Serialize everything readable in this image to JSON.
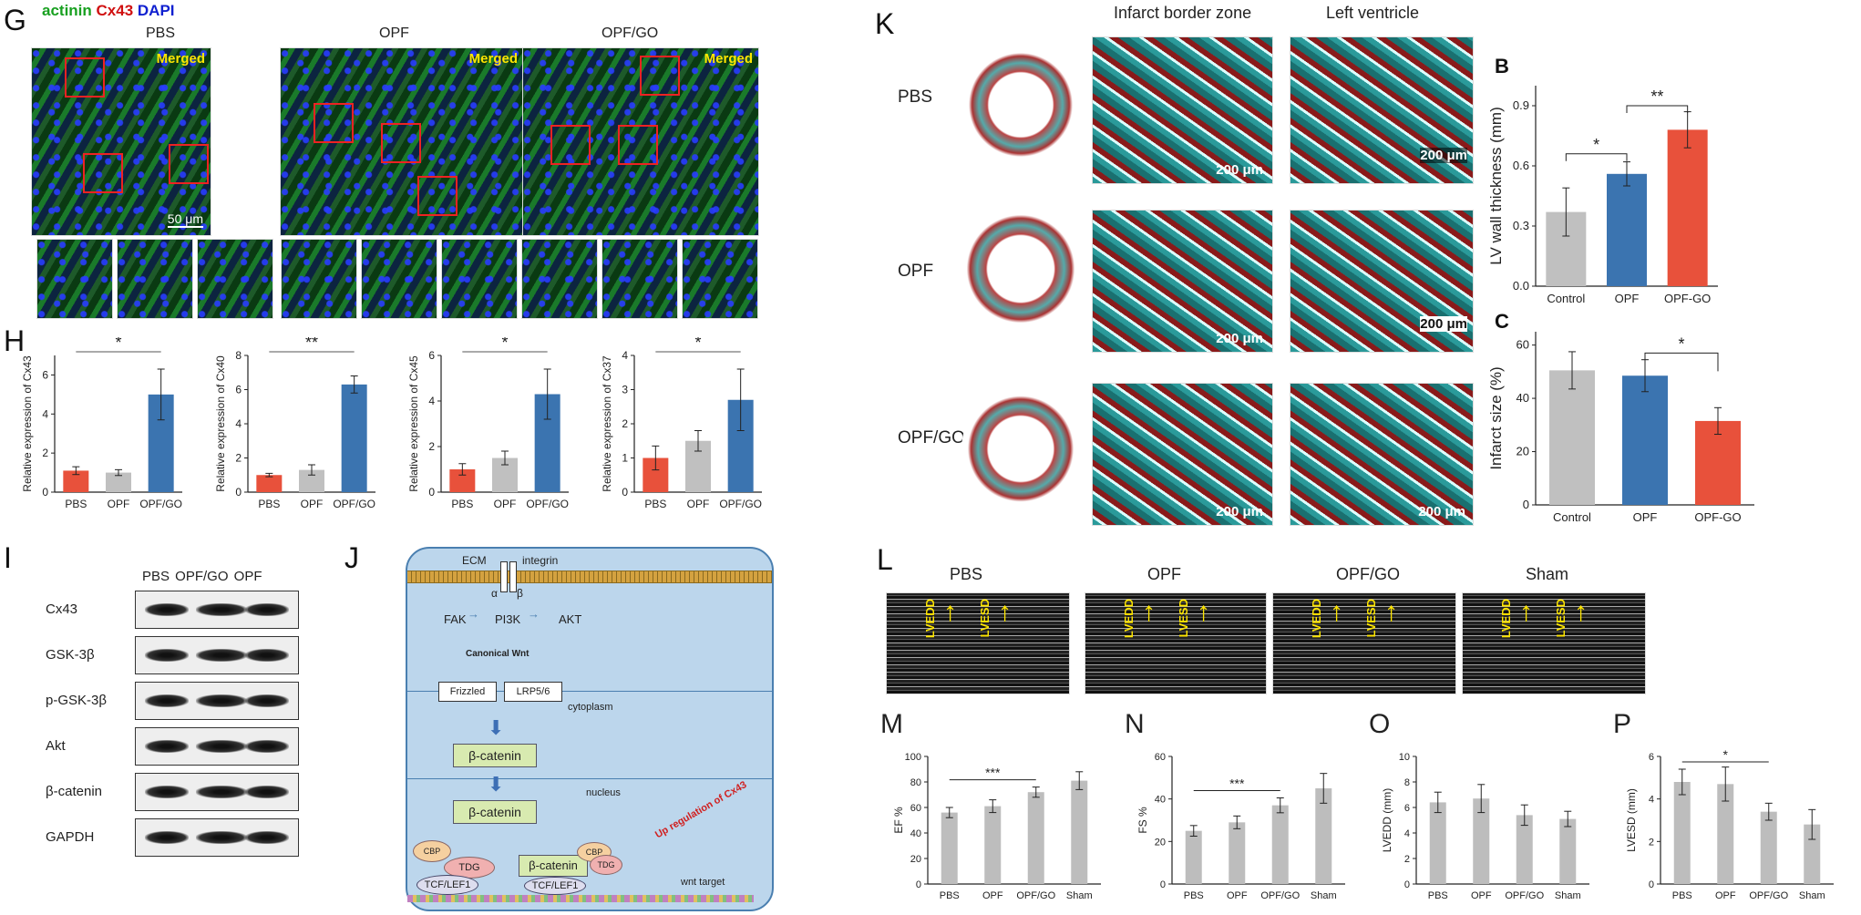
{
  "panelG": {
    "letter": "G",
    "stain_actinin": "actinin",
    "stain_cx43": "Cx43",
    "stain_dapi": "DAPI",
    "columns": [
      "PBS",
      "OPF",
      "OPF/GO"
    ],
    "merged": "Merged",
    "scale": "50 μm"
  },
  "panelH": {
    "letter": "H",
    "charts": [
      {
        "ylabel": "Relative expression of Cx43",
        "categories": [
          "PBS",
          "OPF",
          "OPF/GO"
        ],
        "values": [
          1.1,
          1.0,
          5.0
        ],
        "errors": [
          0.2,
          0.15,
          1.3
        ],
        "ylim": [
          0,
          7
        ],
        "ticks": [
          0,
          2,
          4,
          6
        ],
        "sig": "*"
      },
      {
        "ylabel": "Relative expression of Cx40",
        "categories": [
          "PBS",
          "OPF",
          "OPF/GO"
        ],
        "values": [
          1.0,
          1.3,
          6.3
        ],
        "errors": [
          0.1,
          0.3,
          0.5
        ],
        "ylim": [
          0,
          8
        ],
        "ticks": [
          0,
          2,
          4,
          6,
          8
        ],
        "sig": "**"
      },
      {
        "ylabel": "Relative expression of Cx45",
        "categories": [
          "PBS",
          "OPF",
          "OPF/GO"
        ],
        "values": [
          1.0,
          1.5,
          4.3
        ],
        "errors": [
          0.25,
          0.3,
          1.1
        ],
        "ylim": [
          0,
          6
        ],
        "ticks": [
          0,
          2,
          4,
          6
        ],
        "sig": "*"
      },
      {
        "ylabel": "Relative expression of Cx37",
        "categories": [
          "PBS",
          "OPF",
          "OPF/GO"
        ],
        "values": [
          1.0,
          1.5,
          2.7
        ],
        "errors": [
          0.35,
          0.3,
          0.9
        ],
        "ylim": [
          0,
          4
        ],
        "ticks": [
          0,
          1,
          2,
          3,
          4
        ],
        "sig": "*"
      }
    ],
    "colors": [
      "#e8513b",
      "#c0c0c0",
      "#3b74b0"
    ]
  },
  "panelI": {
    "letter": "I",
    "columns": "PBS  OPF/GO  OPF",
    "rows": [
      "Cx43",
      "GSK-3β",
      "p-GSK-3β",
      "Akt",
      "β-catenin",
      "GAPDH"
    ]
  },
  "panelJ": {
    "letter": "J",
    "ecm": "ECM",
    "integrin": "integrin",
    "alpha": "α",
    "beta": "β",
    "fak": "FAK",
    "pi3k": "PI3K",
    "akt": "AKT",
    "wnt": "Canonical Wnt",
    "frizzled": "Frizzled",
    "lrp": "LRP5/6",
    "cytoplasm": "cytoplasm",
    "bcat1": "β-catenin",
    "bcat2": "β-catenin",
    "nucleus": "nucleus",
    "cbp1": "CBP",
    "tdg1": "TDG",
    "tcf1": "TCF/LEF1",
    "bcat3": "β-catenin",
    "cbp2": "CBP",
    "tdg2": "TDG",
    "tcf2": "TCF/LEF1",
    "upreg": "Up regulation of Cx43",
    "wnttarget": "wnt target"
  },
  "panelK": {
    "letter": "K",
    "col1": "Infarct border zone",
    "col2": "Left ventricle",
    "rows": [
      "PBS",
      "OPF",
      "OPF/GO"
    ],
    "scale": "200 μm"
  },
  "panelB": {
    "letter": "B",
    "ylabel": "LV wall thickness (mm)",
    "categories": [
      "Control",
      "OPF",
      "OPF-GO"
    ],
    "values": [
      0.37,
      0.56,
      0.78
    ],
    "errors": [
      0.12,
      0.06,
      0.09
    ],
    "ylim": [
      0,
      1.0
    ],
    "ticks": [
      "0.0",
      "0.3",
      "0.6",
      "0.9"
    ],
    "sig1": "*",
    "sig2": "**",
    "colors": [
      "#c0c0c0",
      "#3b74b0",
      "#e8513b"
    ]
  },
  "panelC": {
    "letter": "C",
    "ylabel": "Infarct size (%)",
    "categories": [
      "Control",
      "OPF",
      "OPF-GO"
    ],
    "values": [
      50.5,
      48.5,
      31.5
    ],
    "errors": [
      7,
      6,
      5
    ],
    "ylim": [
      0,
      65
    ],
    "ticks": [
      "0",
      "20",
      "40",
      "60"
    ],
    "sig": "*",
    "colors": [
      "#c0c0c0",
      "#3b74b0",
      "#e8513b"
    ]
  },
  "panelL": {
    "letter": "L",
    "titles": [
      "PBS",
      "OPF",
      "OPF/GO",
      "Sham"
    ],
    "lvedd": "LVEDD",
    "lvesd": "LVESD"
  },
  "panelsMP": [
    {
      "letter": "M",
      "ylabel": "EF %",
      "categories": [
        "PBS",
        "OPF",
        "OPF/GO",
        "Sham"
      ],
      "values": [
        56,
        61,
        72,
        81
      ],
      "errors": [
        4,
        5,
        4,
        7
      ],
      "ylim": [
        0,
        100
      ],
      "ticks": [
        "0",
        "20",
        "40",
        "60",
        "80",
        "100"
      ],
      "sig": "***"
    },
    {
      "letter": "N",
      "ylabel": "FS %",
      "categories": [
        "PBS",
        "OPF",
        "OPF/GO",
        "Sham"
      ],
      "values": [
        25,
        29,
        37,
        45
      ],
      "errors": [
        2.5,
        3,
        3.5,
        7
      ],
      "ylim": [
        0,
        60
      ],
      "ticks": [
        "0",
        "20",
        "40",
        "60"
      ],
      "sig": "***"
    },
    {
      "letter": "O",
      "ylabel": "LVEDD (mm)",
      "categories": [
        "PBS",
        "OPF",
        "OPF/GO",
        "Sham"
      ],
      "values": [
        6.4,
        6.7,
        5.4,
        5.1
      ],
      "errors": [
        0.8,
        1.1,
        0.8,
        0.6
      ],
      "ylim": [
        0,
        10
      ],
      "ticks": [
        "0",
        "2",
        "4",
        "6",
        "8",
        "10"
      ],
      "sig": ""
    },
    {
      "letter": "P",
      "ylabel": "LVESD (mm)",
      "categories": [
        "PBS",
        "OPF",
        "OPF/GO",
        "Sham"
      ],
      "values": [
        4.8,
        4.7,
        3.4,
        2.8
      ],
      "errors": [
        0.6,
        0.8,
        0.4,
        0.7
      ],
      "ylim": [
        0,
        6
      ],
      "ticks": [
        "0",
        "2",
        "4",
        "6"
      ],
      "sig": "*"
    }
  ]
}
